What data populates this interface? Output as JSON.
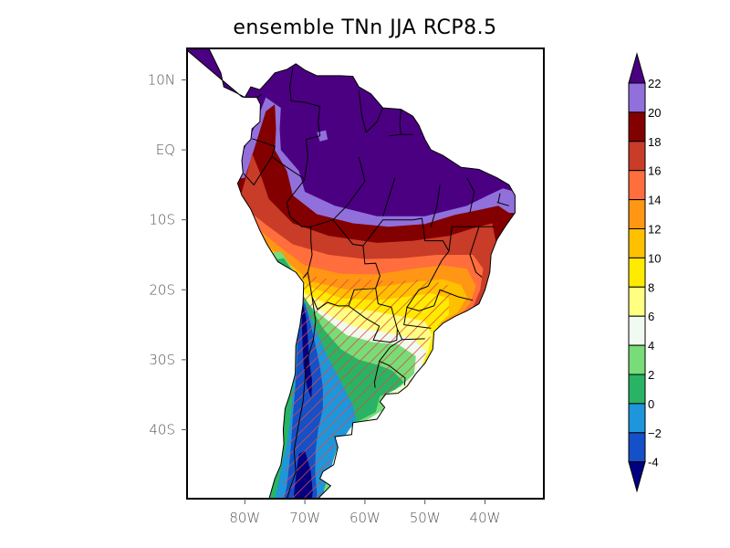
{
  "title": "ensemble TNn JJA RCP8.5",
  "chart_data": {
    "type": "filled-contour-map",
    "title": "ensemble TNn JJA RCP8.5",
    "region": "South America",
    "projection": "cylindrical equidistant",
    "lon_range": [
      -90,
      -30.5
    ],
    "lat_range": [
      -49.5,
      14.5
    ],
    "x_ticks": [
      {
        "value": -80,
        "label": "80W"
      },
      {
        "value": -70,
        "label": "70W"
      },
      {
        "value": -60,
        "label": "60W"
      },
      {
        "value": -50,
        "label": "50W"
      },
      {
        "value": -40,
        "label": "40W"
      }
    ],
    "y_ticks": [
      {
        "value": 10,
        "label": "10N"
      },
      {
        "value": 0,
        "label": "EQ"
      },
      {
        "value": -10,
        "label": "10S"
      },
      {
        "value": -20,
        "label": "20S"
      },
      {
        "value": -30,
        "label": "30S"
      },
      {
        "value": -40,
        "label": "40S"
      }
    ],
    "colorbar": {
      "orientation": "vertical",
      "placement": "right",
      "extend": "both",
      "levels": [
        -4,
        -2,
        0,
        2,
        4,
        6,
        8,
        10,
        12,
        14,
        16,
        18,
        20,
        22
      ],
      "labels": [
        "-4",
        "−2",
        "0",
        "2",
        "4",
        "6",
        "8",
        "10",
        "12",
        "14",
        "16",
        "18",
        "20",
        "22"
      ],
      "colors": [
        "#000080",
        "#1450c8",
        "#1e96dc",
        "#28b464",
        "#78dc78",
        "#f0faf0",
        "#ffff82",
        "#ffeb00",
        "#ffc000",
        "#ff9614",
        "#ff6e3c",
        "#c83c28",
        "#820000",
        "#9170dc",
        "#4b0082"
      ],
      "color_ranges": [
        "< -4",
        "-4 to -2",
        "-2 to 0",
        "0 to 2",
        "2 to 4",
        "4 to 6",
        "6 to 8",
        "8 to 10",
        "10 to 12",
        "12 to 14",
        "14 to 16",
        "16 to 18",
        "18 to 20",
        "20 to 22",
        "> 22"
      ]
    },
    "hatching": {
      "color": "#e8463c",
      "pattern": "diagonal lines",
      "region": "southern Brazil, Paraguay, Uruguay, northern/central Argentina and Andes (approx. 17S-50S, 73W-45W)"
    },
    "features": [
      "country borders",
      "coastlines"
    ]
  }
}
